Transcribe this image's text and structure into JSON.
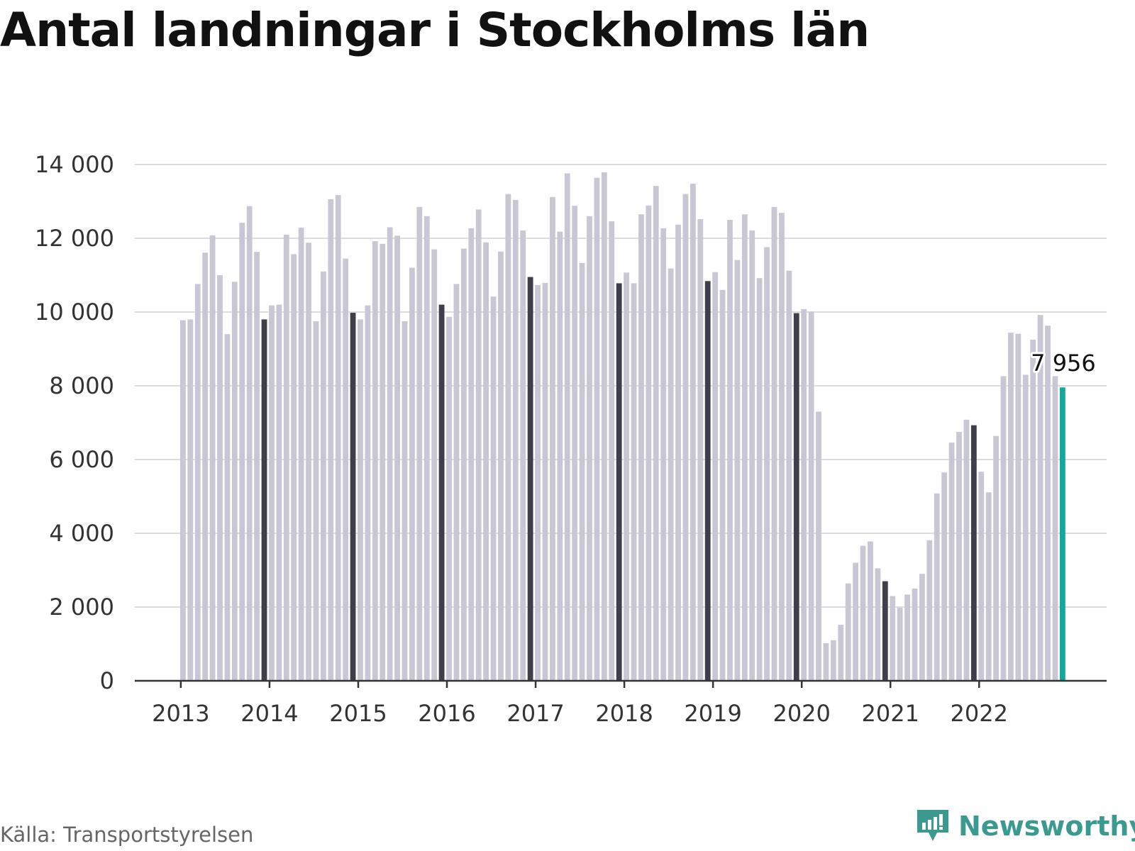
{
  "title": "Antal landningar i Stockholms län",
  "source": "Källa: Transportstyrelsen",
  "brand": "Newsworthy",
  "colors": {
    "bar": "#c8c7d3",
    "december_bar": "#3f3e4b",
    "latest_bar": "#13a89e",
    "grid": "#dddddd",
    "axis": "#333333",
    "brand": "#3a9a8f"
  },
  "chart_data": {
    "type": "bar",
    "title": "Antal landningar i Stockholms län",
    "xlabel": "",
    "ylabel": "",
    "ylim": [
      0,
      14000
    ],
    "yticks": [
      0,
      2000,
      4000,
      6000,
      8000,
      10000,
      12000,
      14000
    ],
    "ytick_labels": [
      "0",
      "2 000",
      "4 000",
      "6 000",
      "8 000",
      "10 000",
      "12 000",
      "14 000"
    ],
    "xtick_labels": [
      "2013",
      "2014",
      "2015",
      "2016",
      "2017",
      "2018",
      "2019",
      "2020",
      "2021",
      "2022"
    ],
    "grid": true,
    "start": "2013-01",
    "frequency": "monthly",
    "highlight": "December bars dark, latest month teal",
    "last_value_label": "7 956",
    "values": [
      9780,
      9800,
      10760,
      11610,
      12080,
      11000,
      9400,
      10820,
      12420,
      12870,
      11630,
      9800,
      10180,
      10200,
      12100,
      11570,
      12290,
      11880,
      9750,
      11100,
      13060,
      13170,
      11450,
      9980,
      9800,
      10180,
      11920,
      11850,
      12300,
      12070,
      9750,
      11200,
      12850,
      12600,
      11700,
      10200,
      9870,
      10760,
      11720,
      12270,
      12780,
      11890,
      10420,
      11640,
      13200,
      13040,
      12210,
      10950,
      10730,
      10790,
      13120,
      12180,
      13760,
      12880,
      11330,
      12600,
      13640,
      13790,
      12460,
      10780,
      11070,
      10780,
      12650,
      12890,
      13420,
      12270,
      11180,
      12370,
      13200,
      13480,
      12520,
      10840,
      11080,
      10600,
      12500,
      11410,
      12650,
      12210,
      10920,
      11760,
      12850,
      12690,
      11120,
      9970,
      10080,
      10010,
      7300,
      1020,
      1100,
      1520,
      2640,
      3200,
      3660,
      3780,
      3050,
      2700,
      2300,
      1980,
      2340,
      2500,
      2900,
      3810,
      5080,
      5650,
      6460,
      6750,
      7080,
      6930,
      5670,
      5110,
      6640,
      8260,
      9440,
      9410,
      8300,
      9250,
      9920,
      9630,
      8260,
      7956
    ]
  }
}
